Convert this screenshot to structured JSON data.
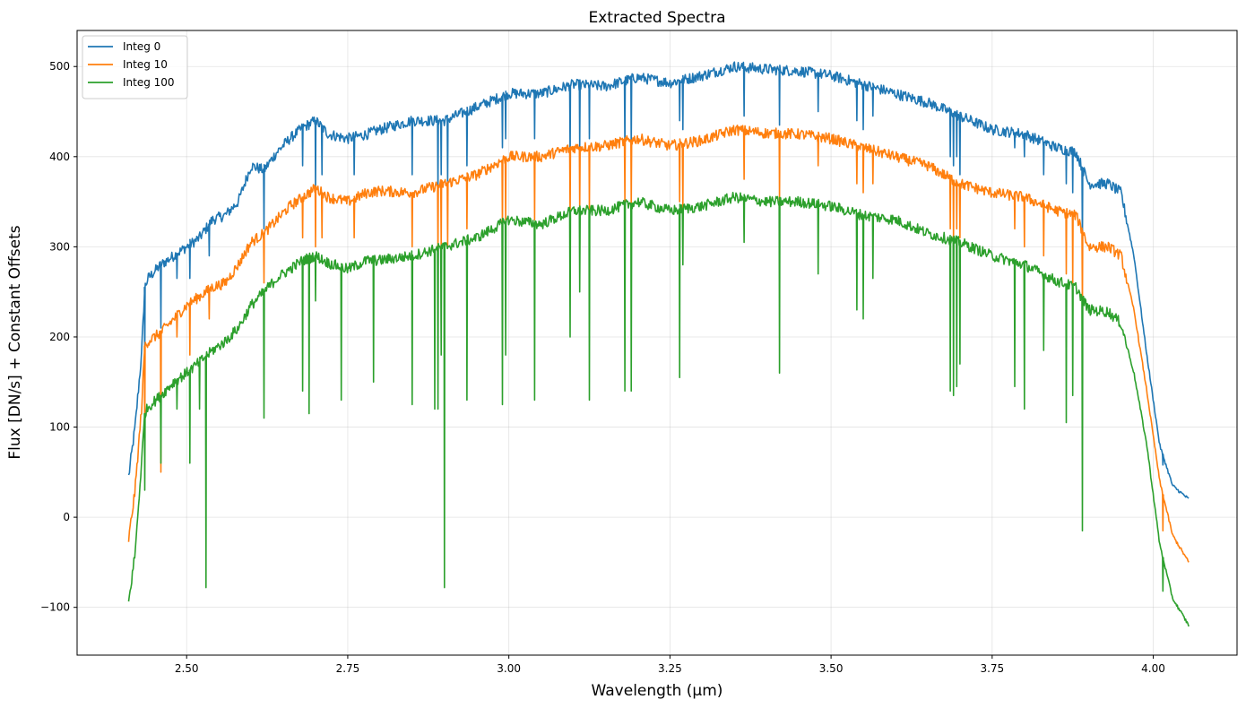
{
  "chart_data": {
    "type": "line",
    "title": "Extracted Spectra",
    "xlabel": "Wavelength (µm)",
    "ylabel": "Flux [DN/s] + Constant Offsets",
    "xlim": [
      2.33,
      4.13
    ],
    "ylim": [
      -153,
      540
    ],
    "xticks": [
      2.5,
      2.75,
      3.0,
      3.25,
      3.5,
      3.75,
      4.0
    ],
    "xtick_labels": [
      "2.50",
      "2.75",
      "3.00",
      "3.25",
      "3.50",
      "3.75",
      "4.00"
    ],
    "yticks": [
      -100,
      0,
      100,
      200,
      300,
      400,
      500
    ],
    "ytick_labels": [
      "−100",
      "0",
      "100",
      "200",
      "300",
      "400",
      "500"
    ],
    "grid": true,
    "legend_position": "top-left",
    "series": [
      {
        "name": "Integ 0",
        "color": "#1f77b4",
        "x": [
          2.41,
          2.42,
          2.43,
          2.435,
          2.44,
          2.46,
          2.48,
          2.5,
          2.52,
          2.54,
          2.56,
          2.58,
          2.6,
          2.62,
          2.64,
          2.66,
          2.68,
          2.7,
          2.72,
          2.75,
          2.78,
          2.8,
          2.85,
          2.9,
          2.95,
          3.0,
          3.05,
          3.1,
          3.15,
          3.2,
          3.25,
          3.3,
          3.35,
          3.4,
          3.45,
          3.5,
          3.55,
          3.6,
          3.65,
          3.7,
          3.75,
          3.8,
          3.85,
          3.88,
          3.9,
          3.93,
          3.95,
          3.97,
          3.99,
          4.01,
          4.03,
          4.055
        ],
        "y": [
          45,
          100,
          180,
          255,
          265,
          280,
          290,
          300,
          310,
          330,
          335,
          350,
          390,
          385,
          405,
          420,
          432,
          440,
          425,
          420,
          425,
          430,
          440,
          440,
          455,
          470,
          470,
          480,
          478,
          488,
          482,
          490,
          500,
          497,
          495,
          490,
          480,
          470,
          460,
          445,
          430,
          425,
          410,
          405,
          370,
          370,
          360,
          290,
          180,
          80,
          35,
          20
        ],
        "dips": [
          [
            2.435,
            170
          ],
          [
            2.46,
            210
          ],
          [
            2.485,
            265
          ],
          [
            2.505,
            265
          ],
          [
            2.535,
            290
          ],
          [
            2.62,
            320
          ],
          [
            2.68,
            390
          ],
          [
            2.7,
            360
          ],
          [
            2.71,
            380
          ],
          [
            2.76,
            380
          ],
          [
            2.85,
            380
          ],
          [
            2.89,
            360
          ],
          [
            2.895,
            380
          ],
          [
            2.905,
            370
          ],
          [
            2.935,
            390
          ],
          [
            2.99,
            410
          ],
          [
            2.995,
            420
          ],
          [
            3.04,
            420
          ],
          [
            3.095,
            400
          ],
          [
            3.11,
            410
          ],
          [
            3.125,
            420
          ],
          [
            3.18,
            410
          ],
          [
            3.19,
            410
          ],
          [
            3.265,
            440
          ],
          [
            3.27,
            430
          ],
          [
            3.365,
            445
          ],
          [
            3.42,
            435
          ],
          [
            3.48,
            450
          ],
          [
            3.54,
            440
          ],
          [
            3.55,
            430
          ],
          [
            3.565,
            445
          ],
          [
            3.685,
            400
          ],
          [
            3.69,
            390
          ],
          [
            3.695,
            400
          ],
          [
            3.7,
            380
          ],
          [
            3.785,
            410
          ],
          [
            3.8,
            400
          ],
          [
            3.83,
            380
          ],
          [
            3.865,
            370
          ],
          [
            3.875,
            360
          ],
          [
            3.89,
            300
          ],
          [
            4.015,
            58
          ]
        ]
      },
      {
        "name": "Integ 10",
        "color": "#ff7f0e",
        "x": [
          2.41,
          2.42,
          2.43,
          2.435,
          2.44,
          2.46,
          2.48,
          2.5,
          2.52,
          2.54,
          2.56,
          2.58,
          2.6,
          2.62,
          2.64,
          2.66,
          2.68,
          2.7,
          2.72,
          2.75,
          2.78,
          2.8,
          2.85,
          2.9,
          2.95,
          3.0,
          3.05,
          3.1,
          3.15,
          3.2,
          3.25,
          3.3,
          3.35,
          3.4,
          3.45,
          3.5,
          3.55,
          3.6,
          3.65,
          3.7,
          3.75,
          3.8,
          3.85,
          3.88,
          3.9,
          3.93,
          3.95,
          3.97,
          3.99,
          4.01,
          4.03,
          4.055
        ],
        "y": [
          -25,
          30,
          120,
          190,
          195,
          205,
          220,
          235,
          245,
          255,
          260,
          280,
          305,
          315,
          330,
          345,
          355,
          365,
          355,
          350,
          360,
          362,
          360,
          370,
          380,
          400,
          400,
          410,
          412,
          420,
          412,
          418,
          430,
          426,
          425,
          420,
          410,
          400,
          390,
          370,
          360,
          355,
          340,
          335,
          300,
          300,
          290,
          230,
          140,
          40,
          -20,
          -50
        ],
        "dips": [
          [
            2.435,
            80
          ],
          [
            2.46,
            50
          ],
          [
            2.485,
            200
          ],
          [
            2.505,
            180
          ],
          [
            2.535,
            220
          ],
          [
            2.62,
            260
          ],
          [
            2.68,
            310
          ],
          [
            2.7,
            300
          ],
          [
            2.71,
            310
          ],
          [
            2.76,
            310
          ],
          [
            2.85,
            300
          ],
          [
            2.89,
            290
          ],
          [
            2.895,
            300
          ],
          [
            2.905,
            300
          ],
          [
            2.935,
            320
          ],
          [
            2.99,
            320
          ],
          [
            2.995,
            330
          ],
          [
            3.04,
            330
          ],
          [
            3.095,
            330
          ],
          [
            3.11,
            340
          ],
          [
            3.125,
            340
          ],
          [
            3.18,
            350
          ],
          [
            3.19,
            345
          ],
          [
            3.265,
            350
          ],
          [
            3.27,
            340
          ],
          [
            3.365,
            375
          ],
          [
            3.42,
            350
          ],
          [
            3.48,
            390
          ],
          [
            3.54,
            370
          ],
          [
            3.55,
            360
          ],
          [
            3.565,
            370
          ],
          [
            3.685,
            320
          ],
          [
            3.69,
            310
          ],
          [
            3.695,
            320
          ],
          [
            3.7,
            310
          ],
          [
            3.785,
            320
          ],
          [
            3.8,
            300
          ],
          [
            3.83,
            290
          ],
          [
            3.865,
            270
          ],
          [
            3.875,
            260
          ],
          [
            3.89,
            230
          ],
          [
            4.015,
            -15
          ]
        ]
      },
      {
        "name": "Integ 100",
        "color": "#2ca02c",
        "x": [
          2.41,
          2.42,
          2.43,
          2.435,
          2.44,
          2.46,
          2.48,
          2.5,
          2.52,
          2.54,
          2.56,
          2.58,
          2.6,
          2.62,
          2.64,
          2.66,
          2.68,
          2.7,
          2.72,
          2.75,
          2.78,
          2.8,
          2.85,
          2.9,
          2.95,
          3.0,
          3.05,
          3.1,
          3.15,
          3.2,
          3.25,
          3.3,
          3.35,
          3.4,
          3.45,
          3.5,
          3.55,
          3.6,
          3.65,
          3.7,
          3.75,
          3.8,
          3.85,
          3.88,
          3.9,
          3.93,
          3.95,
          3.97,
          3.99,
          4.01,
          4.03,
          4.055
        ],
        "y": [
          -95,
          -40,
          60,
          115,
          122,
          135,
          150,
          160,
          172,
          185,
          195,
          210,
          235,
          250,
          265,
          275,
          285,
          290,
          282,
          275,
          285,
          285,
          290,
          300,
          310,
          330,
          325,
          340,
          340,
          350,
          340,
          345,
          355,
          350,
          350,
          345,
          335,
          330,
          315,
          305,
          290,
          280,
          262,
          255,
          230,
          228,
          215,
          160,
          80,
          -30,
          -90,
          -120
        ],
        "dips": [
          [
            2.435,
            30
          ],
          [
            2.46,
            60
          ],
          [
            2.485,
            120
          ],
          [
            2.505,
            60
          ],
          [
            2.52,
            120
          ],
          [
            2.53,
            -78
          ],
          [
            2.62,
            110
          ],
          [
            2.68,
            140
          ],
          [
            2.69,
            115
          ],
          [
            2.7,
            240
          ],
          [
            2.74,
            130
          ],
          [
            2.79,
            150
          ],
          [
            2.85,
            125
          ],
          [
            2.885,
            120
          ],
          [
            2.89,
            120
          ],
          [
            2.895,
            180
          ],
          [
            2.9,
            -78
          ],
          [
            2.935,
            130
          ],
          [
            2.99,
            125
          ],
          [
            2.995,
            180
          ],
          [
            3.04,
            130
          ],
          [
            3.095,
            200
          ],
          [
            3.11,
            250
          ],
          [
            3.125,
            130
          ],
          [
            3.18,
            140
          ],
          [
            3.19,
            140
          ],
          [
            3.265,
            155
          ],
          [
            3.27,
            280
          ],
          [
            3.365,
            305
          ],
          [
            3.42,
            160
          ],
          [
            3.48,
            270
          ],
          [
            3.54,
            230
          ],
          [
            3.55,
            220
          ],
          [
            3.565,
            265
          ],
          [
            3.685,
            140
          ],
          [
            3.69,
            135
          ],
          [
            3.695,
            145
          ],
          [
            3.7,
            170
          ],
          [
            3.785,
            145
          ],
          [
            3.8,
            120
          ],
          [
            3.83,
            185
          ],
          [
            3.865,
            105
          ],
          [
            3.875,
            135
          ],
          [
            3.89,
            -15
          ],
          [
            4.015,
            -82
          ]
        ]
      }
    ]
  }
}
